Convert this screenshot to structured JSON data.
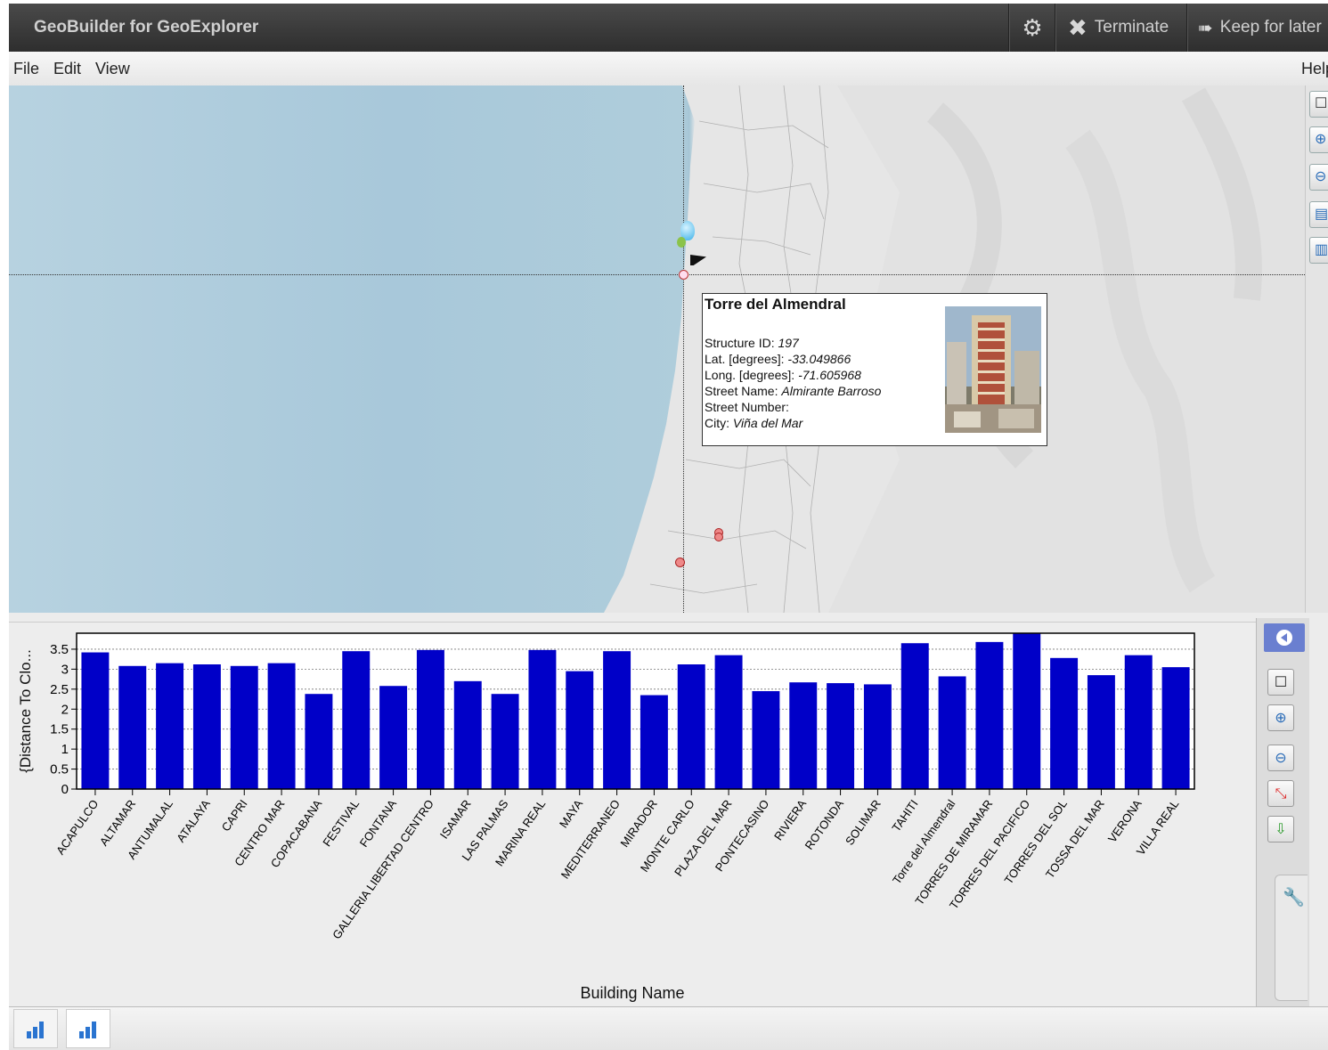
{
  "app": {
    "title": "GeoBuilder for GeoExplorer",
    "buttons": {
      "terminate": "Terminate",
      "keep": "Keep for later"
    },
    "icons": {
      "settings": "gear-icon",
      "terminate": "close-icon",
      "keep": "arrow-right-icon"
    }
  },
  "menu": {
    "file": "File",
    "edit": "Edit",
    "view": "View",
    "help": "Help"
  },
  "popup": {
    "title": "Torre del Almendral",
    "fields": [
      {
        "label": "Structure  ID: ",
        "value": "197"
      },
      {
        "label": "Lat. [degrees]: ",
        "value": "-33.049866"
      },
      {
        "label": "Long. [degrees]: ",
        "value": "-71.605968"
      },
      {
        "label": "Street Name: ",
        "value": "Almirante Barroso"
      },
      {
        "label": "Street  Number: ",
        "value": ""
      },
      {
        "label": "City: ",
        "value": "Viña del Mar"
      }
    ]
  },
  "colors": {
    "bar": "#0000c8",
    "titlebar": "#3a3a3a",
    "sea": "#aecbdb",
    "chart_nav": "#6a7fd0"
  },
  "chart_data": {
    "type": "bar",
    "xlabel": "Building Name",
    "ylabel": "{Distance To  Clo...",
    "ylim": [
      0,
      3.9
    ],
    "yticks": [
      0,
      0.5,
      1,
      1.5,
      2,
      2.5,
      3,
      3.5
    ],
    "grid": true,
    "categories": [
      "ACAPULCO",
      "ALTAMAR",
      "ANTUMALAL",
      "ATALAYA",
      "CAPRI",
      "CENTRO MAR",
      "COPACABANA",
      "FESTIVAL",
      "FONTANA",
      "GALLERIA LIBERTAD CENTRO",
      "ISAMAR",
      "LAS PALMAS",
      "MARINA REAL",
      "MAYA",
      "MEDITERRANEO",
      "MIRADOR",
      "MONTE CARLO",
      "PLAZA DEL MAR",
      "PONTECASINO",
      "RIVIERA",
      "ROTONDA",
      "SOLIMAR",
      "TAHITI",
      "Torre del Almendral",
      "TORRES DE MIRAMAR",
      "TORRES DEL PACIFICO",
      "TORRES DEL SOL",
      "TOSSA DEL MAR",
      "VERONA",
      "VILLA REAL"
    ],
    "values": [
      3.42,
      3.08,
      3.15,
      3.12,
      3.08,
      3.15,
      2.38,
      3.45,
      2.58,
      3.48,
      2.7,
      2.38,
      3.48,
      2.95,
      3.45,
      2.35,
      3.12,
      3.35,
      2.45,
      2.67,
      2.65,
      2.62,
      3.65,
      2.82,
      3.68,
      3.9,
      3.28,
      2.85,
      3.35,
      3.05
    ]
  }
}
